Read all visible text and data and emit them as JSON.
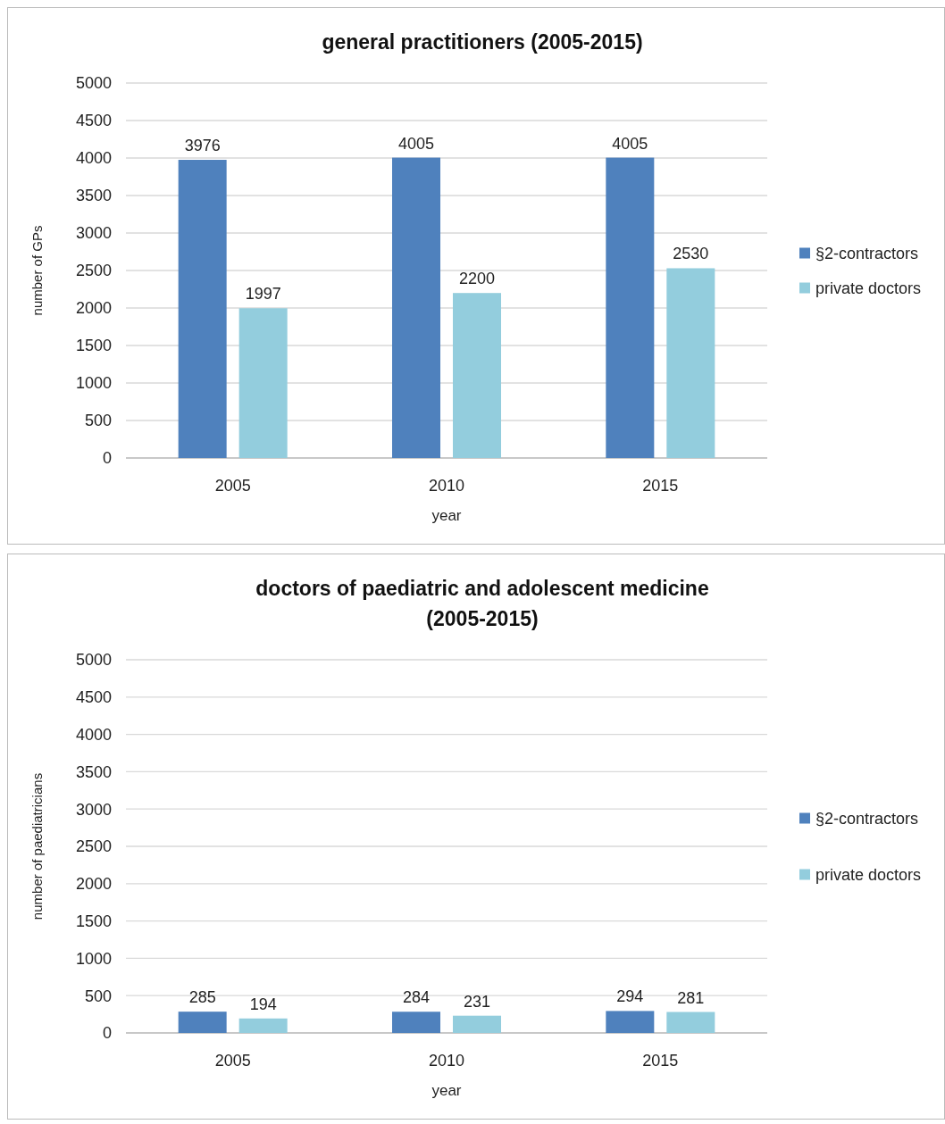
{
  "chart_data": [
    {
      "type": "bar",
      "title": "general practitioners (2005-2015)",
      "xlabel": "year",
      "ylabel": "number of GPs",
      "categories": [
        "2005",
        "2010",
        "2015"
      ],
      "series": [
        {
          "name": "§2-contractors",
          "color": "#4f81bd",
          "values": [
            3976,
            4005,
            4005
          ]
        },
        {
          "name": "private doctors",
          "color": "#93cddd",
          "values": [
            1997,
            2200,
            2530
          ]
        }
      ],
      "ylim": [
        0,
        5000
      ],
      "yticks": [
        0,
        500,
        1000,
        1500,
        2000,
        2500,
        3000,
        3500,
        4000,
        4500,
        5000
      ],
      "grid": "y",
      "legend": "right",
      "data_labels": true
    },
    {
      "type": "bar",
      "title": "doctors of paediatric and adolescent medicine (2005-2015)",
      "xlabel": "year",
      "ylabel": "number of paediatricians",
      "categories": [
        "2005",
        "2010",
        "2015"
      ],
      "series": [
        {
          "name": "§2-contractors",
          "color": "#4f81bd",
          "values": [
            285,
            284,
            294
          ]
        },
        {
          "name": "private doctors",
          "color": "#93cddd",
          "values": [
            194,
            231,
            281
          ]
        }
      ],
      "ylim": [
        0,
        5000
      ],
      "yticks": [
        0,
        500,
        1000,
        1500,
        2000,
        2500,
        3000,
        3500,
        4000,
        4500,
        5000
      ],
      "grid": "y",
      "legend": "right",
      "data_labels": true
    }
  ]
}
